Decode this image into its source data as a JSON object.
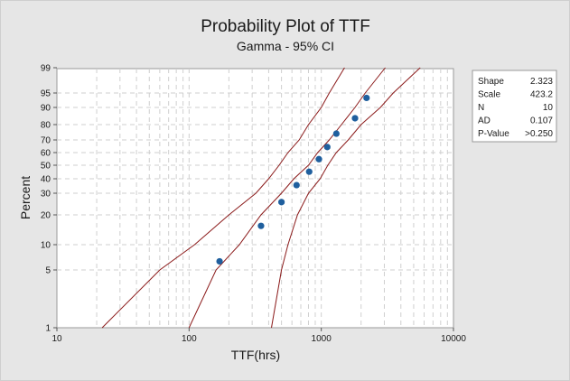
{
  "chart_data": {
    "type": "scatter",
    "title": "Probability Plot of TTF",
    "subtitle": "Gamma - 95% CI",
    "xlabel": "TTF(hrs)",
    "ylabel": "Percent",
    "x_scale": "log",
    "xlim": [
      10,
      10000
    ],
    "x_ticks": [
      "10",
      "100",
      "1000",
      "10000"
    ],
    "y_scale": "gamma-probability",
    "ylim": [
      1,
      99
    ],
    "y_ticks": [
      "1",
      "5",
      "10",
      "20",
      "30",
      "40",
      "50",
      "60",
      "70",
      "80",
      "90",
      "95",
      "99"
    ],
    "grid": true,
    "colors": {
      "points": "#1f5f9e",
      "lines": "#8b1a1a",
      "plot_bg": "#ffffff",
      "grid": "#cfcfcf"
    },
    "points": [
      {
        "x": 170,
        "y": 6.7
      },
      {
        "x": 350,
        "y": 16.3
      },
      {
        "x": 500,
        "y": 25.9
      },
      {
        "x": 650,
        "y": 35.6
      },
      {
        "x": 810,
        "y": 45.2
      },
      {
        "x": 960,
        "y": 54.8
      },
      {
        "x": 1110,
        "y": 64.4
      },
      {
        "x": 1300,
        "y": 74.1
      },
      {
        "x": 1800,
        "y": 83.7
      },
      {
        "x": 2200,
        "y": 93.3
      }
    ],
    "fit_line": [
      {
        "x": 100,
        "y": 1
      },
      {
        "x": 160,
        "y": 5
      },
      {
        "x": 240,
        "y": 10
      },
      {
        "x": 350,
        "y": 20
      },
      {
        "x": 500,
        "y": 30
      },
      {
        "x": 620,
        "y": 40
      },
      {
        "x": 800,
        "y": 50
      },
      {
        "x": 940,
        "y": 60
      },
      {
        "x": 1150,
        "y": 70
      },
      {
        "x": 1420,
        "y": 80
      },
      {
        "x": 1800,
        "y": 90
      },
      {
        "x": 2150,
        "y": 95
      },
      {
        "x": 3050,
        "y": 99
      }
    ],
    "upper_ci": [
      {
        "x": 22,
        "y": 1
      },
      {
        "x": 60,
        "y": 5
      },
      {
        "x": 110,
        "y": 10
      },
      {
        "x": 200,
        "y": 20
      },
      {
        "x": 320,
        "y": 30
      },
      {
        "x": 400,
        "y": 40
      },
      {
        "x": 480,
        "y": 50
      },
      {
        "x": 560,
        "y": 60
      },
      {
        "x": 680,
        "y": 70
      },
      {
        "x": 800,
        "y": 80
      },
      {
        "x": 1000,
        "y": 90
      },
      {
        "x": 1150,
        "y": 95
      },
      {
        "x": 1500,
        "y": 99
      }
    ],
    "lower_ci": [
      {
        "x": 420,
        "y": 1
      },
      {
        "x": 500,
        "y": 5
      },
      {
        "x": 560,
        "y": 10
      },
      {
        "x": 660,
        "y": 20
      },
      {
        "x": 800,
        "y": 30
      },
      {
        "x": 980,
        "y": 40
      },
      {
        "x": 1120,
        "y": 50
      },
      {
        "x": 1300,
        "y": 60
      },
      {
        "x": 1600,
        "y": 70
      },
      {
        "x": 2000,
        "y": 80
      },
      {
        "x": 2800,
        "y": 90
      },
      {
        "x": 3500,
        "y": 95
      },
      {
        "x": 5600,
        "y": 99
      }
    ]
  },
  "stats": [
    {
      "label": "Shape",
      "value": "2.323"
    },
    {
      "label": "Scale",
      "value": "423.2"
    },
    {
      "label": "N",
      "value": "10"
    },
    {
      "label": "AD",
      "value": "0.107"
    },
    {
      "label": "P-Value",
      "value": ">0.250"
    }
  ]
}
